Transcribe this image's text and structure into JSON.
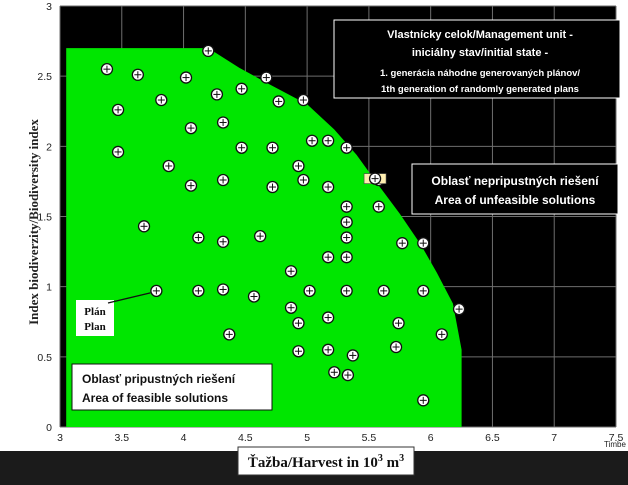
{
  "chart_data": {
    "type": "scatter",
    "ylabel": "Index biodiverzity/Biodiversity index",
    "xlabel_main": "Ťažba/Harvest in 10",
    "xlabel_sup": "3",
    "xlabel_unit": " m",
    "xlabel_sup2": "3",
    "x_cut_label": "Timbe",
    "xlim": [
      3,
      7.5
    ],
    "ylim": [
      0,
      3
    ],
    "x_ticks": [
      "3",
      "3.5",
      "4",
      "4.5",
      "5",
      "5.5",
      "6",
      "6.5",
      "7",
      "7.5"
    ],
    "y_ticks": [
      "0",
      "0.5",
      "1",
      "1.5",
      "2",
      "2.5",
      "3"
    ],
    "grid": true,
    "feasible_region": [
      [
        3.05,
        0
      ],
      [
        3.05,
        2.7
      ],
      [
        4.2,
        2.7
      ],
      [
        4.45,
        2.56
      ],
      [
        4.7,
        2.44
      ],
      [
        5.0,
        2.3
      ],
      [
        5.22,
        2.12
      ],
      [
        5.4,
        1.94
      ],
      [
        5.58,
        1.72
      ],
      [
        5.75,
        1.52
      ],
      [
        5.92,
        1.3
      ],
      [
        6.05,
        1.1
      ],
      [
        6.18,
        0.88
      ],
      [
        6.25,
        0.55
      ],
      [
        6.25,
        0
      ]
    ],
    "points": [
      [
        3.38,
        2.55
      ],
      [
        3.63,
        2.51
      ],
      [
        3.47,
        2.26
      ],
      [
        3.47,
        1.96
      ],
      [
        3.82,
        2.33
      ],
      [
        4.02,
        2.49
      ],
      [
        4.06,
        2.13
      ],
      [
        3.88,
        1.86
      ],
      [
        4.2,
        2.68
      ],
      [
        4.27,
        2.37
      ],
      [
        4.32,
        2.17
      ],
      [
        4.47,
        2.41
      ],
      [
        4.67,
        2.49
      ],
      [
        4.77,
        2.32
      ],
      [
        4.97,
        2.33
      ],
      [
        4.47,
        1.99
      ],
      [
        4.72,
        1.99
      ],
      [
        4.32,
        1.76
      ],
      [
        4.06,
        1.72
      ],
      [
        4.72,
        1.71
      ],
      [
        4.93,
        1.86
      ],
      [
        4.97,
        1.76
      ],
      [
        5.17,
        1.71
      ],
      [
        5.04,
        2.04
      ],
      [
        5.17,
        2.04
      ],
      [
        5.32,
        1.99
      ],
      [
        5.58,
        1.76
      ],
      [
        5.58,
        1.57
      ],
      [
        5.32,
        1.57
      ],
      [
        5.32,
        1.46
      ],
      [
        3.68,
        1.43
      ],
      [
        4.12,
        1.35
      ],
      [
        4.32,
        1.32
      ],
      [
        4.62,
        1.36
      ],
      [
        5.32,
        1.35
      ],
      [
        5.77,
        1.31
      ],
      [
        5.94,
        1.31
      ],
      [
        5.17,
        1.21
      ],
      [
        5.32,
        1.21
      ],
      [
        4.87,
        1.11
      ],
      [
        3.78,
        0.97
      ],
      [
        4.12,
        0.97
      ],
      [
        4.32,
        0.98
      ],
      [
        4.57,
        0.93
      ],
      [
        5.02,
        0.97
      ],
      [
        5.32,
        0.97
      ],
      [
        5.62,
        0.97
      ],
      [
        5.94,
        0.97
      ],
      [
        4.87,
        0.85
      ],
      [
        5.17,
        0.78
      ],
      [
        4.93,
        0.74
      ],
      [
        5.74,
        0.74
      ],
      [
        6.23,
        0.84
      ],
      [
        6.09,
        0.66
      ],
      [
        4.37,
        0.66
      ],
      [
        4.93,
        0.54
      ],
      [
        5.17,
        0.55
      ],
      [
        5.37,
        0.51
      ],
      [
        5.72,
        0.57
      ],
      [
        5.22,
        0.39
      ],
      [
        5.33,
        0.37
      ],
      [
        5.94,
        0.19
      ],
      [
        5.55,
        1.77
      ]
    ],
    "annotations": {
      "top_box": [
        "Vlastnícky celok/Management unit  -",
        "iniciálny stav/initial state  -",
        "1.    generácia náhodne generovaných plánov/",
        "1th generation of  randomly generated plans"
      ],
      "unfeasible": [
        "Oblasť nepripustných riešení",
        "Area of unfeasible solutions"
      ],
      "feasible": [
        "Oblasť pripustných riešení",
        "Area of feasible solutions"
      ],
      "plan": [
        "Plán",
        "Plan"
      ],
      "plan_target": [
        3.78,
        0.97
      ]
    },
    "colors": {
      "background": "#000000",
      "feasible": "#00e600",
      "grid": "#6e6e6e",
      "marker_fill": "#ffffff",
      "marker_stroke": "#111111",
      "highlight": "#ffeeb0"
    }
  }
}
